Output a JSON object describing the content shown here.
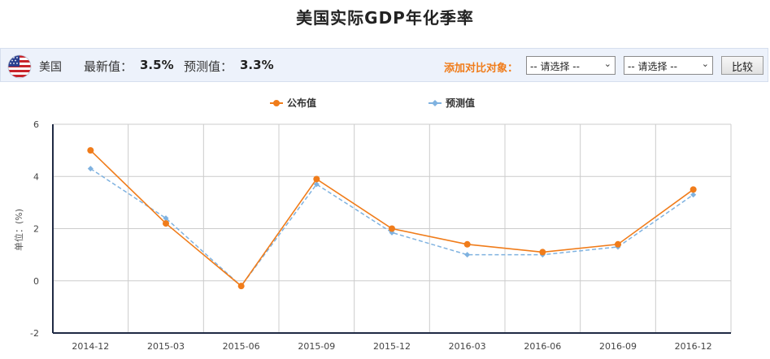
{
  "page": {
    "title": "美国实际GDP年化季率"
  },
  "info_bar": {
    "country": "美国",
    "latest_label": "最新值：",
    "latest_value": "3.5%",
    "forecast_label": "预测值：",
    "forecast_value": "3.3%",
    "compare_label": "添加对比对象：",
    "select_1": "-- 请选择 --",
    "select_2": "-- 请选择 --",
    "compare_button": "比较",
    "flag_icon": "us-flag-icon"
  },
  "colors": {
    "actual": "#f07c1a",
    "forecast": "#7fb2e0",
    "accent": "#f07c1a",
    "bar_background": "#edf2fb"
  },
  "chart_data": {
    "type": "line",
    "categories": [
      "2014-12",
      "2015-03",
      "2015-06",
      "2015-09",
      "2015-12",
      "2016-03",
      "2016-06",
      "2016-09",
      "2016-12"
    ],
    "series": [
      {
        "name": "公布值",
        "values": [
          5.0,
          2.2,
          -0.2,
          3.9,
          2.0,
          1.4,
          1.1,
          1.4,
          3.5
        ],
        "color": "#f07c1a",
        "style": "solid",
        "marker": "circle"
      },
      {
        "name": "预测值",
        "values": [
          4.3,
          2.4,
          -0.2,
          3.7,
          1.85,
          1.0,
          1.0,
          1.3,
          3.3
        ],
        "color": "#7fb2e0",
        "style": "dashed",
        "marker": "diamond"
      }
    ],
    "ylabel": "单位：(%)",
    "ylim": [
      -2,
      6
    ],
    "yticks": [
      6,
      4,
      2,
      0,
      -2
    ],
    "grid": true,
    "legend": "top-center"
  }
}
